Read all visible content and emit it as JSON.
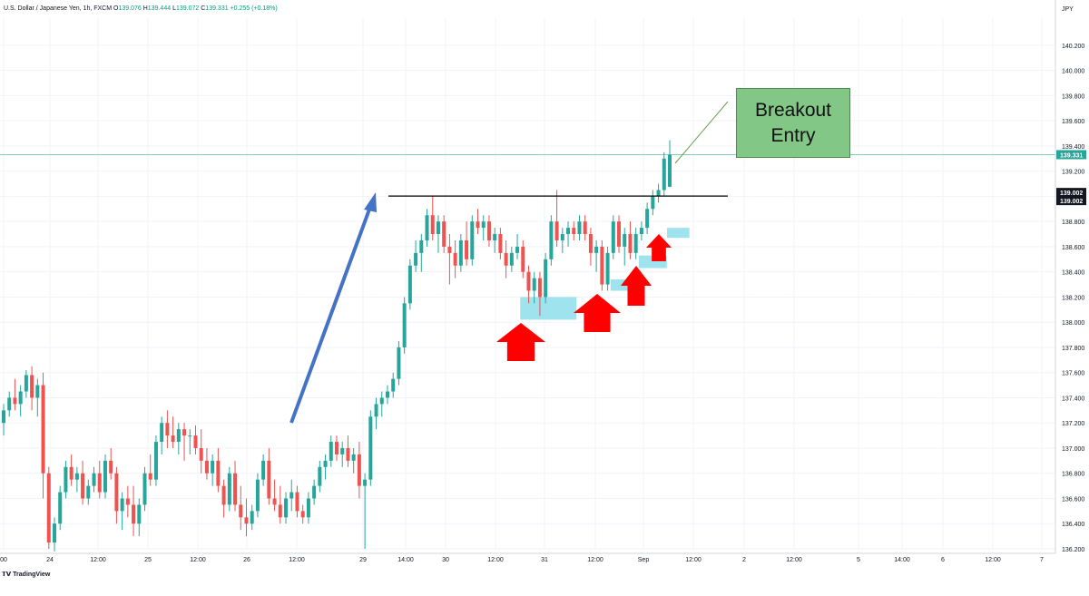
{
  "header": {
    "symbol": "U.S. Dollar / Japanese Yen, 1h, FXCM",
    "o_label": "O",
    "o_value": "139.076",
    "h_label": "H",
    "h_value": "139.444",
    "l_label": "L",
    "l_value": "139.072",
    "c_label": "C",
    "c_value": "139.331",
    "change": "+0.255 (+0.18%)"
  },
  "branding": {
    "logo_text": "TradingView"
  },
  "callout": {
    "line1": "Breakout",
    "line2": "Entry"
  },
  "colors": {
    "up": "#26a69a",
    "down": "#ef5350",
    "trend_arrow": "#4472c4",
    "support_zone": "#9fe3ee",
    "signal_arrow": "#ff0000",
    "resistance_line": "#000000",
    "price_line": "#7fd0c4",
    "callout_bg": "#82c785"
  },
  "chart_data": {
    "type": "candlestick",
    "title": "U.S. Dollar / Japanese Yen, 1h, FXCM",
    "currency_label": "JPY",
    "ylim": [
      136.2,
      140.4
    ],
    "y_ticks": [
      "140.200",
      "140.000",
      "139.800",
      "139.600",
      "139.400",
      "139.200",
      "139.000",
      "138.800",
      "138.600",
      "138.400",
      "138.200",
      "138.000",
      "137.800",
      "137.600",
      "137.400",
      "137.200",
      "137.000",
      "136.800",
      "136.600",
      "136.400",
      "136.200"
    ],
    "x_ticks": [
      "00",
      "24",
      "12:00",
      "25",
      "12:00",
      "26",
      "12:00",
      "29",
      "14:00",
      "30",
      "12:00",
      "31",
      "12:00",
      "Sep",
      "12:00",
      "2",
      "12:00",
      "5",
      "14:00",
      "6",
      "12:00",
      "7"
    ],
    "grid": true,
    "last_price": "139.331",
    "resistance_level": "139.002",
    "resistance_label_2": "139.002",
    "annotations": [
      "Breakout Entry"
    ],
    "candles": [
      [
        137.2,
        137.35,
        137.1,
        137.3
      ],
      [
        137.3,
        137.45,
        137.25,
        137.4
      ],
      [
        137.4,
        137.55,
        137.3,
        137.35
      ],
      [
        137.35,
        137.5,
        137.25,
        137.45
      ],
      [
        137.45,
        137.62,
        137.4,
        137.58
      ],
      [
        137.58,
        137.65,
        137.3,
        137.4
      ],
      [
        137.4,
        137.55,
        137.25,
        137.5
      ],
      [
        137.5,
        137.6,
        136.6,
        136.8
      ],
      [
        136.8,
        136.85,
        136.2,
        136.25
      ],
      [
        136.25,
        136.45,
        136.18,
        136.4
      ],
      [
        136.4,
        136.7,
        136.35,
        136.65
      ],
      [
        136.65,
        136.9,
        136.6,
        136.85
      ],
      [
        136.85,
        136.95,
        136.7,
        136.75
      ],
      [
        136.75,
        136.85,
        136.65,
        136.8
      ],
      [
        136.8,
        136.9,
        136.55,
        136.6
      ],
      [
        136.6,
        136.75,
        136.55,
        136.7
      ],
      [
        136.7,
        136.85,
        136.65,
        136.8
      ],
      [
        136.8,
        136.9,
        136.6,
        136.65
      ],
      [
        136.65,
        136.95,
        136.6,
        136.9
      ],
      [
        136.9,
        137.0,
        136.75,
        136.8
      ],
      [
        136.8,
        136.85,
        136.4,
        136.5
      ],
      [
        136.5,
        136.65,
        136.35,
        136.6
      ],
      [
        136.6,
        136.7,
        136.45,
        136.55
      ],
      [
        136.55,
        136.7,
        136.3,
        136.4
      ],
      [
        136.4,
        136.6,
        136.3,
        136.55
      ],
      [
        136.55,
        136.85,
        136.5,
        136.8
      ],
      [
        136.8,
        136.95,
        136.7,
        136.75
      ],
      [
        136.75,
        137.1,
        136.7,
        137.05
      ],
      [
        137.05,
        137.25,
        136.95,
        137.2
      ],
      [
        137.2,
        137.3,
        137.0,
        137.1
      ],
      [
        137.1,
        137.25,
        137.0,
        137.05
      ],
      [
        137.05,
        137.2,
        136.95,
        137.15
      ],
      [
        137.15,
        137.2,
        136.9,
        137.1
      ],
      [
        137.1,
        137.15,
        136.95,
        137.1
      ],
      [
        137.1,
        137.18,
        136.95,
        137.0
      ],
      [
        137.0,
        137.15,
        136.8,
        136.9
      ],
      [
        136.9,
        137.0,
        136.75,
        136.8
      ],
      [
        136.8,
        136.95,
        136.7,
        136.9
      ],
      [
        136.9,
        137.0,
        136.65,
        136.7
      ],
      [
        136.7,
        136.75,
        136.45,
        136.55
      ],
      [
        136.55,
        136.85,
        136.5,
        136.8
      ],
      [
        136.8,
        136.9,
        136.5,
        136.55
      ],
      [
        136.55,
        136.7,
        136.35,
        136.45
      ],
      [
        136.45,
        136.6,
        136.3,
        136.4
      ],
      [
        136.4,
        136.55,
        136.35,
        136.5
      ],
      [
        136.5,
        136.8,
        136.45,
        136.75
      ],
      [
        136.75,
        136.95,
        136.7,
        136.9
      ],
      [
        136.9,
        137.0,
        136.55,
        136.6
      ],
      [
        136.6,
        136.75,
        136.5,
        136.55
      ],
      [
        136.55,
        136.7,
        136.4,
        136.45
      ],
      [
        136.45,
        136.65,
        136.4,
        136.6
      ],
      [
        136.6,
        136.75,
        136.5,
        136.65
      ],
      [
        136.65,
        136.7,
        136.45,
        136.5
      ],
      [
        136.5,
        136.55,
        136.4,
        136.45
      ],
      [
        136.45,
        136.65,
        136.4,
        136.6
      ],
      [
        136.6,
        136.75,
        136.55,
        136.7
      ],
      [
        136.7,
        136.9,
        136.65,
        136.85
      ],
      [
        136.85,
        136.95,
        136.75,
        136.9
      ],
      [
        136.9,
        137.1,
        136.85,
        137.05
      ],
      [
        137.05,
        137.1,
        136.9,
        136.95
      ],
      [
        136.95,
        137.05,
        136.85,
        137.0
      ],
      [
        137.0,
        137.1,
        136.85,
        136.9
      ],
      [
        136.9,
        137.0,
        136.8,
        136.95
      ],
      [
        136.95,
        137.05,
        136.6,
        136.7
      ],
      [
        136.7,
        136.8,
        136.2,
        136.75
      ],
      [
        136.75,
        137.3,
        136.7,
        137.25
      ],
      [
        137.25,
        137.4,
        137.15,
        137.35
      ],
      [
        137.35,
        137.45,
        137.25,
        137.4
      ],
      [
        137.4,
        137.5,
        137.35,
        137.45
      ],
      [
        137.45,
        137.6,
        137.4,
        137.55
      ],
      [
        137.55,
        137.85,
        137.5,
        137.8
      ],
      [
        137.8,
        138.2,
        137.75,
        138.15
      ],
      [
        138.15,
        138.5,
        138.1,
        138.45
      ],
      [
        138.45,
        138.65,
        138.4,
        138.55
      ],
      [
        138.55,
        138.7,
        138.4,
        138.65
      ],
      [
        138.65,
        138.9,
        138.6,
        138.85
      ],
      [
        138.85,
        139.0,
        138.65,
        138.7
      ],
      [
        138.7,
        138.85,
        138.55,
        138.8
      ],
      [
        138.8,
        138.85,
        138.55,
        138.6
      ],
      [
        138.6,
        138.7,
        138.3,
        138.55
      ],
      [
        138.55,
        138.65,
        138.35,
        138.45
      ],
      [
        138.45,
        138.7,
        138.4,
        138.65
      ],
      [
        138.65,
        138.8,
        138.45,
        138.5
      ],
      [
        138.5,
        138.85,
        138.45,
        138.8
      ],
      [
        138.8,
        138.9,
        138.7,
        138.75
      ],
      [
        138.75,
        138.85,
        138.65,
        138.8
      ],
      [
        138.8,
        138.85,
        138.6,
        138.65
      ],
      [
        138.65,
        138.75,
        138.55,
        138.7
      ],
      [
        138.7,
        138.75,
        138.5,
        138.55
      ],
      [
        138.55,
        138.65,
        138.35,
        138.45
      ],
      [
        138.45,
        138.6,
        138.4,
        138.55
      ],
      [
        138.55,
        138.7,
        138.5,
        138.6
      ],
      [
        138.6,
        138.65,
        138.35,
        138.4
      ],
      [
        138.4,
        138.45,
        138.15,
        138.25
      ],
      [
        138.25,
        138.4,
        138.15,
        138.35
      ],
      [
        138.35,
        138.4,
        138.05,
        138.2
      ],
      [
        138.2,
        138.55,
        138.15,
        138.5
      ],
      [
        138.5,
        138.85,
        138.45,
        138.8
      ],
      [
        138.8,
        139.05,
        138.6,
        138.65
      ],
      [
        138.65,
        138.75,
        138.55,
        138.7
      ],
      [
        138.7,
        138.8,
        138.6,
        138.75
      ],
      [
        138.75,
        138.8,
        138.65,
        138.7
      ],
      [
        138.7,
        138.85,
        138.65,
        138.8
      ],
      [
        138.8,
        138.85,
        138.65,
        138.7
      ],
      [
        138.7,
        138.75,
        138.45,
        138.55
      ],
      [
        138.55,
        138.65,
        138.4,
        138.6
      ],
      [
        138.6,
        138.65,
        138.25,
        138.3
      ],
      [
        138.3,
        138.6,
        138.25,
        138.55
      ],
      [
        138.55,
        138.85,
        138.5,
        138.8
      ],
      [
        138.8,
        138.85,
        138.55,
        138.6
      ],
      [
        138.6,
        138.75,
        138.45,
        138.7
      ],
      [
        138.7,
        138.8,
        138.5,
        138.55
      ],
      [
        138.55,
        138.75,
        138.5,
        138.7
      ],
      [
        138.7,
        138.8,
        138.65,
        138.75
      ],
      [
        138.75,
        138.95,
        138.7,
        138.9
      ],
      [
        138.9,
        139.05,
        138.85,
        139.0
      ],
      [
        139.0,
        139.1,
        138.95,
        139.05
      ],
      [
        139.05,
        139.35,
        139.0,
        139.3
      ],
      [
        139.076,
        139.444,
        139.072,
        139.331
      ]
    ]
  }
}
